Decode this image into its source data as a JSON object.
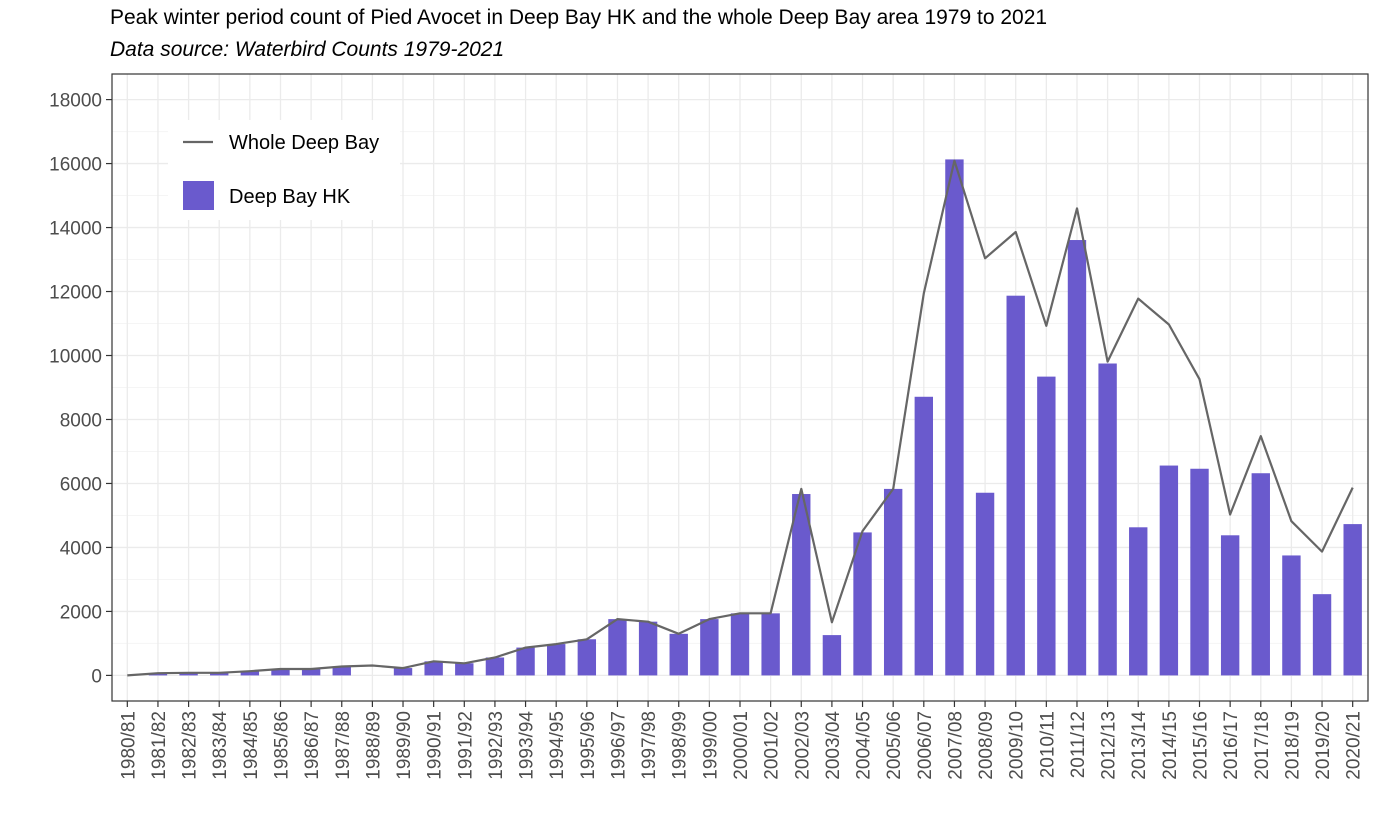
{
  "chart_data": {
    "type": "bar",
    "title": "Peak winter period count of Pied Avocet in Deep Bay HK and the whole Deep Bay area 1979 to 2021",
    "subtitle": "Data source: Waterbird Counts 1979-2021",
    "xlabel": "",
    "ylabel": "",
    "ylim": [
      -800,
      18800
    ],
    "yticks": [
      0,
      2000,
      4000,
      6000,
      8000,
      10000,
      12000,
      14000,
      16000,
      18000
    ],
    "grid": true,
    "legend_position": "top-left",
    "categories": [
      "1980/81",
      "1981/82",
      "1982/83",
      "1983/84",
      "1984/85",
      "1985/86",
      "1986/87",
      "1987/88",
      "1988/89",
      "1989/90",
      "1990/91",
      "1991/92",
      "1992/93",
      "1993/94",
      "1994/95",
      "1995/96",
      "1996/97",
      "1997/98",
      "1998/99",
      "1999/00",
      "2000/01",
      "2001/02",
      "2002/03",
      "2003/04",
      "2004/05",
      "2005/06",
      "2006/07",
      "2007/08",
      "2008/09",
      "2009/10",
      "2010/11",
      "2011/12",
      "2012/13",
      "2013/14",
      "2014/15",
      "2015/16",
      "2016/17",
      "2017/18",
      "2018/19",
      "2019/20",
      "2020/21"
    ],
    "series": [
      {
        "name": "Whole Deep Bay",
        "kind": "line",
        "color": "#666666",
        "values": [
          0,
          70,
          80,
          80,
          130,
          200,
          200,
          280,
          310,
          230,
          440,
          380,
          560,
          870,
          980,
          1130,
          1760,
          1680,
          1300,
          1760,
          1940,
          1940,
          5830,
          1660,
          4510,
          5830,
          11940,
          16090,
          13040,
          13860,
          10930,
          14600,
          9810,
          11780,
          10970,
          9260,
          5030,
          7480,
          4820,
          3870,
          5870
        ]
      },
      {
        "name": "Deep Bay HK",
        "kind": "bar",
        "color": "#6a5acd",
        "values": [
          0,
          70,
          80,
          80,
          130,
          200,
          200,
          280,
          0,
          230,
          440,
          380,
          560,
          870,
          980,
          1130,
          1760,
          1680,
          1300,
          1760,
          1940,
          1940,
          5670,
          1260,
          4470,
          5830,
          8710,
          16130,
          5710,
          11870,
          9340,
          13610,
          9750,
          4630,
          6560,
          6460,
          4380,
          6320,
          3750,
          2540,
          4730
        ]
      }
    ]
  },
  "style": {
    "panel_border": "#333333",
    "grid_major": "#ebebeb",
    "grid_minor": "#f5f5f5",
    "axis_text": "#4d4d4d"
  }
}
